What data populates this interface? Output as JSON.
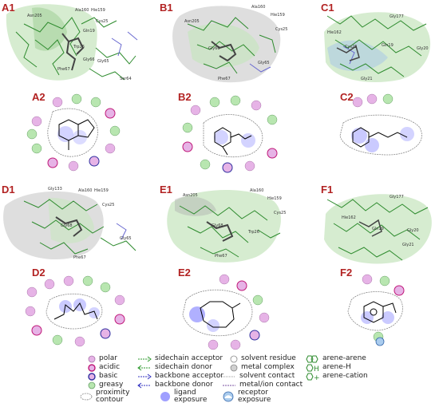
{
  "panels": {
    "A1": {
      "label": "A1",
      "residues": [
        "Asn205",
        "Ala160",
        "Hie159",
        "Cys25",
        "Gln19",
        "Trp26",
        "Gly66",
        "Phe67",
        "Gly65",
        "Ser64"
      ]
    },
    "B1": {
      "label": "B1",
      "residues": [
        "Asn205",
        "Ala160",
        "Hie159",
        "Cys25",
        "Gly66",
        "Gly65",
        "Phe67"
      ]
    },
    "C1": {
      "label": "C1",
      "residues": [
        "Gly177",
        "Hie162",
        "Cys25",
        "Gln19",
        "Gly20",
        "Gly21"
      ]
    },
    "D1": {
      "label": "D1",
      "residues": [
        "Gly133",
        "Ala160",
        "Hie159",
        "Cys25",
        "Gly68",
        "Gly65",
        "Phe67"
      ]
    },
    "E1": {
      "label": "E1",
      "residues": [
        "Asn205",
        "Ala160",
        "Hie159",
        "Cys25",
        "Trp26",
        "Gly68",
        "Phe67"
      ]
    },
    "F1": {
      "label": "F1",
      "residues": [
        "Gly177",
        "Hie162",
        "Gln19",
        "Gly20",
        "Gly21"
      ]
    },
    "A2": {
      "label": "A2"
    },
    "B2": {
      "label": "B2"
    },
    "C2": {
      "label": "C2"
    },
    "D2": {
      "label": "D2"
    },
    "E2": {
      "label": "E2"
    },
    "F2": {
      "label": "F2"
    }
  },
  "legend": {
    "polar": "polar",
    "acidic": "acidic",
    "basic": "basic",
    "greasy": "greasy",
    "proximity": "proximity",
    "contour": "contour",
    "sidechain_acceptor": "sidechain acceptor",
    "sidechain_donor": "sidechain donor",
    "backbone_acceptor": "backbone acceptor",
    "backbone_donor": "backbone donor",
    "ligand": "ligand",
    "ligand_exposure": "exposure",
    "solvent_residue": "solvent residue",
    "metal_complex": "metal complex",
    "solvent_contact": "solvent contact",
    "metal_ion_contact": "metal/ion contact",
    "receptor": "receptor",
    "receptor_exposure": "exposure",
    "arene_arene": "arene-arene",
    "arene_h": "arene-H",
    "arene_cation": "arene-cation"
  },
  "colors": {
    "panel_label": "#b22222",
    "polar": "#e6b3e6",
    "acidic_ring": "#c01878",
    "basic_ring": "#3030a0",
    "greasy": "#b8e6b0",
    "sidechain_acceptor": "#2e9a2e",
    "backbone": "#3030c0",
    "ligand_exposure": "#5050ff",
    "arene": "#2e8b2e"
  }
}
